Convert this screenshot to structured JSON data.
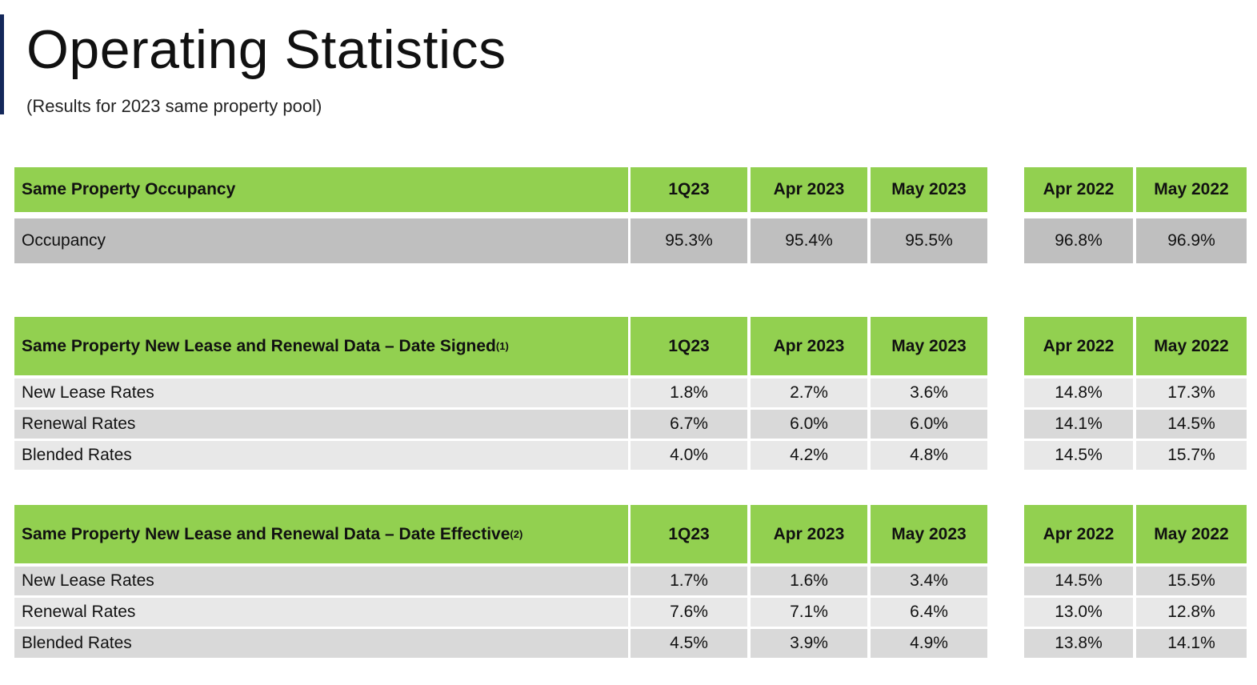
{
  "header": {
    "title": "Operating Statistics",
    "subtitle": "(Results for 2023 same property pool)"
  },
  "columns": [
    "1Q23",
    "Apr 2023",
    "May 2023",
    "Apr 2022",
    "May 2022"
  ],
  "occupancy": {
    "heading": "Same Property Occupancy",
    "rows": [
      {
        "label": "Occupancy",
        "values": [
          "95.3%",
          "95.4%",
          "95.5%",
          "96.8%",
          "96.9%"
        ]
      }
    ]
  },
  "date_signed": {
    "heading": "Same Property New Lease and Renewal Data – Date Signed",
    "footnote": "(1)",
    "rows": [
      {
        "label": "New Lease Rates",
        "values": [
          "1.8%",
          "2.7%",
          "3.6%",
          "14.8%",
          "17.3%"
        ]
      },
      {
        "label": "Renewal Rates",
        "values": [
          "6.7%",
          "6.0%",
          "6.0%",
          "14.1%",
          "14.5%"
        ]
      },
      {
        "label": "Blended Rates",
        "values": [
          "4.0%",
          "4.2%",
          "4.8%",
          "14.5%",
          "15.7%"
        ]
      }
    ]
  },
  "date_effective": {
    "heading": "Same Property New Lease and Renewal Data – Date Effective",
    "footnote": "(2)",
    "rows": [
      {
        "label": "New Lease Rates",
        "values": [
          "1.7%",
          "1.6%",
          "3.4%",
          "14.5%",
          "15.5%"
        ]
      },
      {
        "label": "Renewal Rates",
        "values": [
          "7.6%",
          "7.1%",
          "6.4%",
          "13.0%",
          "12.8%"
        ]
      },
      {
        "label": "Blended Rates",
        "values": [
          "4.5%",
          "3.9%",
          "4.9%",
          "13.8%",
          "14.1%"
        ]
      }
    ]
  }
}
